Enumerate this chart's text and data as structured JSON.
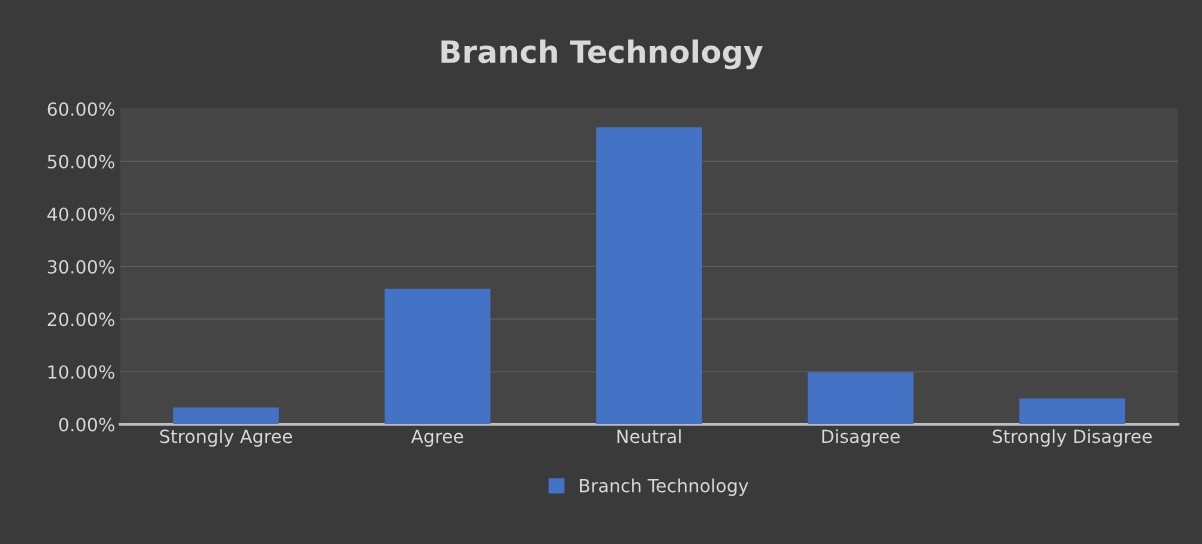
{
  "chart_data": {
    "type": "bar",
    "title": "Branch Technology",
    "categories": [
      "Strongly Agree",
      "Agree",
      "Neutral",
      "Disagree",
      "Strongly Disagree"
    ],
    "series": [
      {
        "name": "Branch Technology",
        "color": "#4472c4",
        "values": [
          3.2,
          25.8,
          56.5,
          9.9,
          4.9
        ]
      }
    ],
    "ylim": [
      0,
      60
    ],
    "yticks": [
      {
        "value": 0,
        "label": "0.00%"
      },
      {
        "value": 10,
        "label": "10.00%"
      },
      {
        "value": 20,
        "label": "20.00%"
      },
      {
        "value": 30,
        "label": "30.00%"
      },
      {
        "value": 40,
        "label": "40.00%"
      },
      {
        "value": 50,
        "label": "50.00%"
      },
      {
        "value": 60,
        "label": "60.00%"
      }
    ],
    "grid": "y",
    "legend": "bottom"
  }
}
